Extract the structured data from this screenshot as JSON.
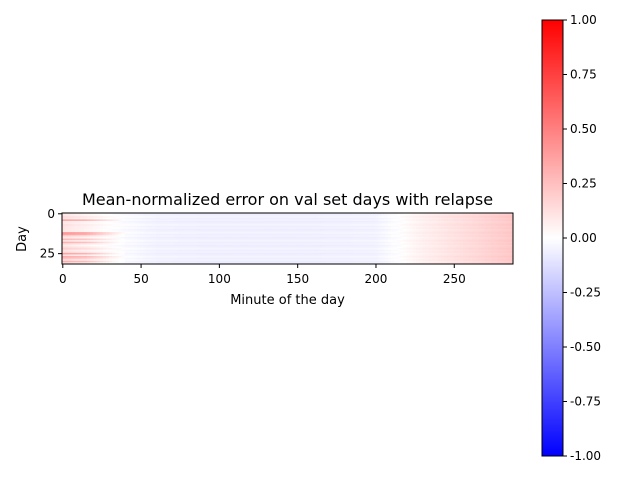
{
  "chart_data": {
    "type": "heatmap",
    "title": "Mean-normalized error on val set days with relapse",
    "xlabel": "Minute of the day",
    "ylabel": "Day",
    "x_range": [
      0,
      288
    ],
    "y_range": [
      0,
      32
    ],
    "x_ticks": [
      0,
      50,
      100,
      150,
      200,
      250
    ],
    "y_ticks": [
      0,
      25
    ],
    "n_rows": 32,
    "n_cols": 288,
    "colormap": [
      "#0000ff",
      "#ffffff",
      "#ff0000"
    ],
    "colorbar": {
      "vmin": -1.0,
      "vmax": 1.0,
      "ticks": [
        "-1.00",
        "-0.75",
        "-0.50",
        "-0.25",
        "0.00",
        "0.25",
        "0.50",
        "0.75",
        "1.00"
      ]
    },
    "column_profile": {
      "minutes": [
        0,
        10,
        30,
        60,
        100,
        150,
        200,
        215,
        230,
        260,
        288
      ],
      "values": [
        0.1,
        0.06,
        0.0,
        -0.05,
        -0.06,
        -0.06,
        -0.05,
        0.0,
        0.06,
        0.14,
        0.22
      ]
    },
    "row_offsets": [
      0.02,
      0.0,
      0.03,
      0.02,
      0.25,
      0.02,
      0.0,
      0.02,
      0.02,
      0.0,
      0.02,
      0.0,
      0.3,
      0.28,
      0.05,
      0.02,
      0.18,
      0.0,
      0.22,
      0.02,
      0.0,
      0.05,
      0.08,
      0.02,
      0.02,
      0.28,
      0.02,
      0.22,
      0.15,
      0.02,
      0.24,
      0.0
    ],
    "row_offset_span_minutes": [
      0,
      14,
      40
    ]
  }
}
